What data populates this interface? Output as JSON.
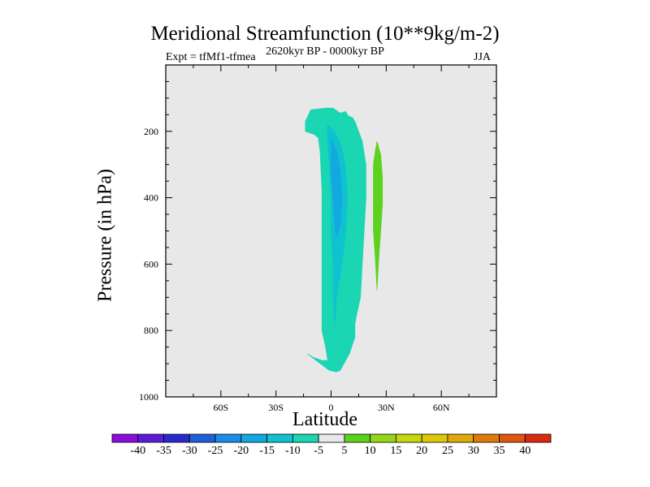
{
  "chart_data": {
    "type": "heatmap",
    "title": "Meridional Streamfunction (10**9kg/m-2)",
    "subtitle_left": "Expt = tfMf1-tfmea",
    "subtitle_center": "2620kyr BP - 0000kyr BP",
    "subtitle_right": "JJA",
    "xlabel": "Latitude",
    "ylabel": "Pressure (in hPa)",
    "xlim": [
      -90,
      90
    ],
    "ylim": [
      1000,
      0
    ],
    "xticks": [
      {
        "value": -60,
        "label": "60S"
      },
      {
        "value": -30,
        "label": "30S"
      },
      {
        "value": 0,
        "label": "0"
      },
      {
        "value": 30,
        "label": "30N"
      },
      {
        "value": 60,
        "label": "60N"
      }
    ],
    "yticks": [
      {
        "value": 200,
        "label": "200"
      },
      {
        "value": 400,
        "label": "400"
      },
      {
        "value": 600,
        "label": "600"
      },
      {
        "value": 800,
        "label": "800"
      },
      {
        "value": 1000,
        "label": "1000"
      }
    ],
    "background_color": "#e8e8e8",
    "colorbar": {
      "labels": [
        "-40",
        "-35",
        "-30",
        "-25",
        "-20",
        "-15",
        "-10",
        "-5",
        "5",
        "10",
        "15",
        "20",
        "25",
        "30",
        "35",
        "40"
      ],
      "colors": [
        "#8c0fd9",
        "#5c1ad9",
        "#2a2acc",
        "#1f60d6",
        "#1a8de6",
        "#12a8e0",
        "#10c2d0",
        "#1ad6b3",
        "#e8e8e8",
        "#5ad21e",
        "#96d61a",
        "#c8d60e",
        "#dcc80a",
        "#e0a80a",
        "#e07a0a",
        "#e0550f",
        "#d92a0f"
      ]
    },
    "regions": [
      {
        "name": "contour-minus-5",
        "level": -5,
        "color": "#1ad6b3",
        "outline": [
          [
            -13,
            870
          ],
          [
            -10,
            880
          ],
          [
            -5,
            890
          ],
          [
            0,
            890
          ],
          [
            4,
            890
          ],
          [
            7,
            880
          ],
          [
            10,
            850
          ],
          [
            11,
            820
          ],
          [
            12,
            780
          ],
          [
            12,
            720
          ],
          [
            12,
            600
          ],
          [
            13,
            500
          ],
          [
            15,
            400
          ],
          [
            16,
            300
          ],
          [
            15,
            230
          ],
          [
            14,
            190
          ],
          [
            12,
            160
          ],
          [
            8,
            150
          ],
          [
            5,
            155
          ],
          [
            2,
            135
          ],
          [
            -4,
            140
          ],
          [
            -7,
            140
          ],
          [
            -11,
            160
          ],
          [
            -13,
            180
          ],
          [
            -13,
            200
          ],
          [
            -9,
            210
          ],
          [
            -6,
            210
          ],
          [
            -5,
            260
          ],
          [
            -5,
            500
          ],
          [
            -5,
            700
          ],
          [
            -5,
            800
          ],
          [
            -3,
            850
          ],
          [
            -1,
            920
          ],
          [
            3,
            925
          ],
          [
            5,
            920
          ],
          [
            7,
            900
          ],
          [
            10,
            870
          ],
          [
            13,
            820
          ],
          [
            13,
            780
          ],
          [
            14,
            750
          ],
          [
            16,
            700
          ],
          [
            17,
            600
          ],
          [
            18,
            500
          ],
          [
            19,
            400
          ],
          [
            19,
            300
          ],
          [
            17,
            230
          ],
          [
            15,
            200
          ],
          [
            13,
            170
          ],
          [
            10,
            160
          ],
          [
            8,
            140
          ],
          [
            5,
            145
          ],
          [
            1,
            130
          ],
          [
            -3,
            130
          ],
          [
            -11,
            135
          ],
          [
            -14,
            170
          ],
          [
            -14,
            200
          ],
          [
            -9,
            210
          ],
          [
            -7,
            220
          ],
          [
            -6,
            260
          ],
          [
            -4,
            500
          ],
          [
            -3,
            850
          ],
          [
            -1,
            920
          ]
        ]
      },
      {
        "name": "contour-minus-10",
        "level": -10,
        "color": "#10c2d0",
        "outline": [
          [
            -2,
            180
          ],
          [
            2,
            200
          ],
          [
            6,
            250
          ],
          [
            8,
            320
          ],
          [
            9,
            400
          ],
          [
            8,
            500
          ],
          [
            6,
            600
          ],
          [
            3,
            700
          ],
          [
            2,
            790
          ],
          [
            1,
            700
          ],
          [
            1,
            600
          ],
          [
            0,
            500
          ],
          [
            0,
            400
          ],
          [
            -1,
            300
          ],
          [
            -2,
            230
          ]
        ]
      },
      {
        "name": "contour-minus-15",
        "level": -15,
        "color": "#12a8e0",
        "outline": [
          [
            0,
            220
          ],
          [
            3,
            260
          ],
          [
            5,
            320
          ],
          [
            6,
            400
          ],
          [
            5,
            480
          ],
          [
            3,
            520
          ],
          [
            2,
            480
          ],
          [
            1,
            400
          ],
          [
            0,
            320
          ]
        ]
      },
      {
        "name": "contour-plus-5",
        "level": 5,
        "color": "#5ad21e",
        "outline": [
          [
            25,
            230
          ],
          [
            27,
            270
          ],
          [
            28,
            340
          ],
          [
            28,
            420
          ],
          [
            27,
            500
          ],
          [
            26,
            580
          ],
          [
            25,
            680
          ],
          [
            24,
            580
          ],
          [
            23,
            500
          ],
          [
            23,
            400
          ],
          [
            23,
            300
          ],
          [
            24,
            260
          ]
        ]
      }
    ]
  }
}
